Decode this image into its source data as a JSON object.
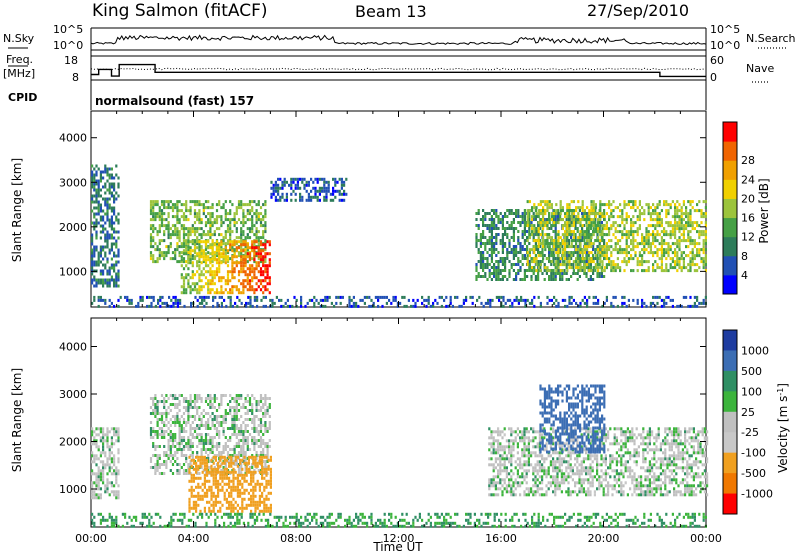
{
  "header": {
    "station": "King Salmon (fitACF)",
    "beam": "Beam 13",
    "date": "27/Sep/2010"
  },
  "strip": {
    "nsky_label": "N.Sky",
    "freq_label": "Freq.",
    "freq_unit": "[MHz]",
    "cpid_label": "CPID",
    "nsearch_label": "N.Search",
    "nave_label": "Nave",
    "left_ticks_noise": [
      "10^5",
      "10^0"
    ],
    "left_ticks_freq": [
      "18",
      "8"
    ],
    "right_ticks_noise": [
      "10^5",
      "10^0"
    ],
    "right_ticks_nave": [
      "60",
      "0"
    ],
    "cpid_text": "normalsound (fast) 157",
    "freq_steps": [
      {
        "t": 0.0,
        "mhz": 10.5
      },
      {
        "t": 0.3,
        "mhz": 12.8
      },
      {
        "t": 0.8,
        "mhz": 9.8
      },
      {
        "t": 1.1,
        "mhz": 15.0
      },
      {
        "t": 2.5,
        "mhz": 11.5
      },
      {
        "t": 22.2,
        "mhz": 9.6
      },
      {
        "t": 24.0,
        "mhz": 9.6
      }
    ]
  },
  "colors": {
    "power_scale": [
      "#0000ff",
      "#2150b4",
      "#2d7c5a",
      "#45a045",
      "#9cc43c",
      "#f0d000",
      "#f0a000",
      "#f06400",
      "#ff0000"
    ],
    "velocity_scale": [
      "#1e3ca0",
      "#3c6eb4",
      "#2f8f64",
      "#3cb43c",
      "#c0c0c0",
      "#c8c8c8",
      "#f0a020",
      "#f07800",
      "#ff0000"
    ]
  },
  "chart_data": [
    {
      "type": "heatmap",
      "name_hint": "power",
      "ylabel": "Slant Range [km]",
      "yticks": [
        "1000",
        "2000",
        "3000",
        "4000"
      ],
      "ylim": [
        200,
        4600
      ],
      "xlim": [
        0,
        24
      ],
      "colorbar_label": "Power [dB]",
      "colorbar_ticks": [
        "4",
        "8",
        "12",
        "16",
        "20",
        "24",
        "28"
      ],
      "zlim": [
        0,
        32
      ],
      "regions": [
        {
          "t0": 0.0,
          "t1": 1.1,
          "r0": 700,
          "r1": 3400,
          "level": 8
        },
        {
          "t0": 2.3,
          "t1": 6.8,
          "r0": 1200,
          "r1": 2600,
          "level": 14
        },
        {
          "t0": 3.5,
          "t1": 7.0,
          "r0": 500,
          "r1": 1700,
          "level": 27
        },
        {
          "t0": 7.0,
          "t1": 10.0,
          "r0": 2600,
          "r1": 3100,
          "level": 6
        },
        {
          "t0": 15.0,
          "t1": 20.0,
          "r0": 800,
          "r1": 2400,
          "level": 10
        },
        {
          "t0": 17.0,
          "t1": 24.0,
          "r0": 1000,
          "r1": 2600,
          "level": 16
        },
        {
          "t0": 0.0,
          "t1": 24.0,
          "r0": 200,
          "r1": 450,
          "level": 6
        }
      ]
    },
    {
      "type": "heatmap",
      "name_hint": "velocity",
      "xlabel": "Time UT",
      "ylabel": "Slant Range [km]",
      "yticks": [
        "1000",
        "2000",
        "3000",
        "4000"
      ],
      "ylim": [
        200,
        4600
      ],
      "xlim": [
        0,
        24
      ],
      "xticks": [
        "00:00",
        "04:00",
        "08:00",
        "12:00",
        "16:00",
        "20:00",
        "00:00"
      ],
      "colorbar_label": "Velocity [m s",
      "colorbar_sup": "-1",
      "colorbar_label_end": "]",
      "colorbar_ticks": [
        "-1000",
        "-500",
        "-100",
        "-25",
        "25",
        "100",
        "500",
        "1000"
      ],
      "regions": [
        {
          "t0": 0.0,
          "t1": 1.1,
          "r0": 800,
          "r1": 2300,
          "vel": 0
        },
        {
          "t0": 2.3,
          "t1": 7.0,
          "r0": 1300,
          "r1": 3000,
          "vel": 0
        },
        {
          "t0": 3.8,
          "t1": 7.0,
          "r0": 500,
          "r1": 1700,
          "vel": -150
        },
        {
          "t0": 15.5,
          "t1": 24.0,
          "r0": 900,
          "r1": 2300,
          "vel": 0
        },
        {
          "t0": 17.5,
          "t1": 20.0,
          "r0": 1800,
          "r1": 3200,
          "vel": 200
        },
        {
          "t0": 0.0,
          "t1": 24.0,
          "r0": 200,
          "r1": 500,
          "vel": 80
        }
      ]
    }
  ]
}
